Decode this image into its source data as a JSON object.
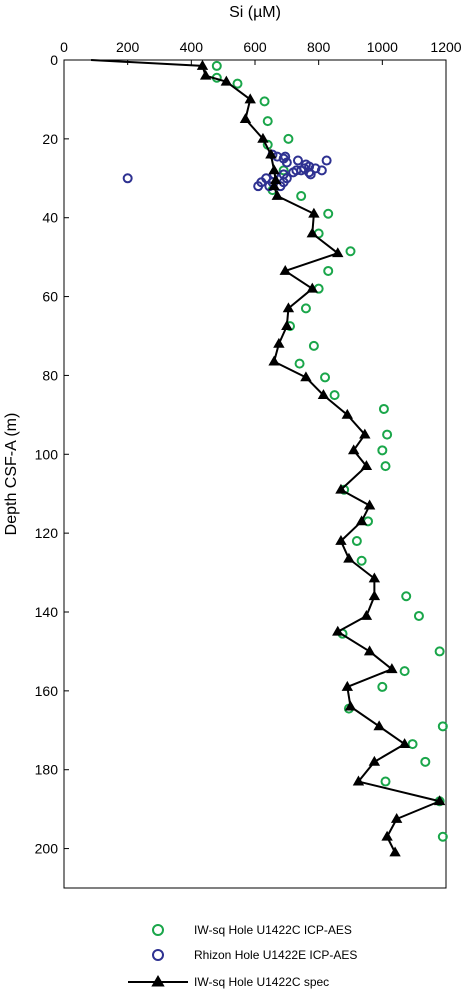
{
  "chart_data": {
    "type": "scatter",
    "xlabel": "Si (µM)",
    "ylabel": "Depth CSF-A (m)",
    "x_ticks": [
      0,
      200,
      400,
      600,
      800,
      1000,
      1200
    ],
    "y_ticks": [
      0,
      20,
      40,
      60,
      80,
      100,
      120,
      140,
      160,
      180,
      200
    ],
    "xlim": [
      0,
      1200
    ],
    "ylim": [
      0,
      210
    ],
    "y_inverted": true,
    "x_axis_position": "top",
    "legend_position": "bottom",
    "colors": {
      "icp_c": "#1aa64a",
      "rhizon_e": "#2e3191",
      "spec": "#000000"
    },
    "series": [
      {
        "name": "IW-sq Hole U1422C ICP-AES",
        "marker": "open-circle",
        "points": [
          [
            480,
            1.5
          ],
          [
            480,
            4.5
          ],
          [
            545,
            6
          ],
          [
            630,
            10.5
          ],
          [
            640,
            15.5
          ],
          [
            705,
            20
          ],
          [
            640,
            21.5
          ],
          [
            690,
            28
          ],
          [
            655,
            33
          ],
          [
            745,
            34.5
          ],
          [
            830,
            39
          ],
          [
            800,
            44
          ],
          [
            900,
            48.5
          ],
          [
            830,
            53.5
          ],
          [
            800,
            58
          ],
          [
            760,
            63
          ],
          [
            710,
            67.5
          ],
          [
            785,
            72.5
          ],
          [
            740,
            77
          ],
          [
            820,
            80.5
          ],
          [
            850,
            85
          ],
          [
            1005,
            88.5
          ],
          [
            1015,
            95
          ],
          [
            1000,
            99
          ],
          [
            1010,
            103
          ],
          [
            880,
            109
          ],
          [
            955,
            117
          ],
          [
            920,
            122
          ],
          [
            935,
            127
          ],
          [
            1075,
            136
          ],
          [
            1115,
            141
          ],
          [
            875,
            145.5
          ],
          [
            1180,
            150
          ],
          [
            1070,
            155
          ],
          [
            1000,
            159
          ],
          [
            895,
            164.5
          ],
          [
            1190,
            169
          ],
          [
            1095,
            173.5
          ],
          [
            1135,
            178
          ],
          [
            1010,
            183
          ],
          [
            1180,
            188
          ],
          [
            1190,
            197
          ]
        ]
      },
      {
        "name": "Rhizon Hole U1422E ICP-AES",
        "marker": "open-circle",
        "points": [
          [
            200,
            30
          ],
          [
            655,
            24
          ],
          [
            670,
            24.5
          ],
          [
            695,
            24.5
          ],
          [
            690,
            25
          ],
          [
            700,
            26
          ],
          [
            735,
            25.5
          ],
          [
            760,
            26.5
          ],
          [
            770,
            27
          ],
          [
            790,
            27.5
          ],
          [
            825,
            25.5
          ],
          [
            810,
            28
          ],
          [
            770,
            28.5
          ],
          [
            745,
            28
          ],
          [
            720,
            28.5
          ],
          [
            690,
            29
          ],
          [
            660,
            29
          ],
          [
            635,
            30
          ],
          [
            620,
            31
          ],
          [
            655,
            31
          ],
          [
            690,
            31
          ],
          [
            610,
            32
          ],
          [
            645,
            32
          ],
          [
            680,
            32
          ],
          [
            700,
            30
          ],
          [
            730,
            28
          ],
          [
            775,
            29
          ],
          [
            755,
            27.5
          ]
        ]
      },
      {
        "name": "IW-sq Hole U1422C spec",
        "marker": "filled-triangle",
        "line": true,
        "points": [
          [
            85,
            0
          ],
          [
            435,
            1.5
          ],
          [
            445,
            4
          ],
          [
            510,
            5.5
          ],
          [
            585,
            10
          ],
          [
            570,
            15
          ],
          [
            625,
            20
          ],
          [
            650,
            24
          ],
          [
            660,
            28
          ],
          [
            665,
            30.5
          ],
          [
            660,
            32
          ],
          [
            670,
            34.5
          ],
          [
            785,
            39
          ],
          [
            780,
            44
          ],
          [
            860,
            49
          ],
          [
            695,
            53.5
          ],
          [
            780,
            58
          ],
          [
            705,
            63
          ],
          [
            700,
            67.5
          ],
          [
            675,
            72
          ],
          [
            660,
            76.5
          ],
          [
            760,
            80.5
          ],
          [
            815,
            85
          ],
          [
            890,
            90
          ],
          [
            945,
            95
          ],
          [
            910,
            99
          ],
          [
            950,
            103
          ],
          [
            870,
            109
          ],
          [
            960,
            113
          ],
          [
            935,
            117
          ],
          [
            870,
            122
          ],
          [
            895,
            126.5
          ],
          [
            975,
            131.5
          ],
          [
            975,
            136
          ],
          [
            950,
            141
          ],
          [
            860,
            145
          ],
          [
            960,
            150
          ],
          [
            1030,
            154.5
          ],
          [
            890,
            159
          ],
          [
            900,
            164
          ],
          [
            990,
            169
          ],
          [
            1070,
            173.5
          ],
          [
            975,
            178
          ],
          [
            925,
            183
          ],
          [
            1180,
            188
          ],
          [
            1045,
            192.5
          ],
          [
            1015,
            197
          ],
          [
            1040,
            201
          ]
        ]
      }
    ]
  }
}
